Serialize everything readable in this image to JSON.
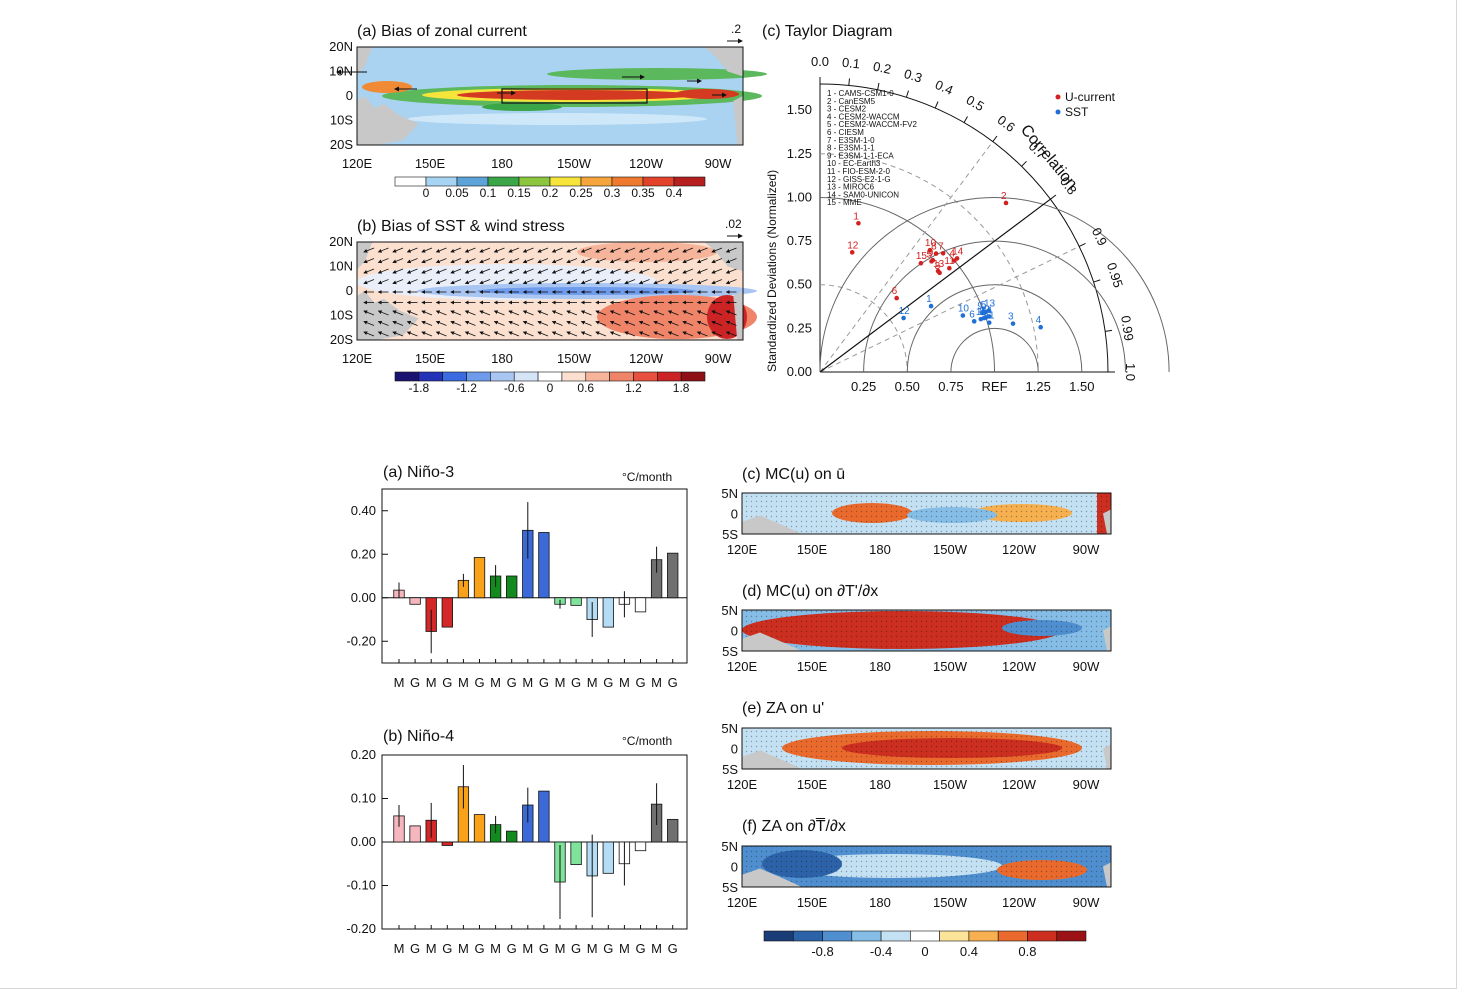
{
  "colors": {
    "ocean": "#a9d3f0",
    "land": "#c8c8c8",
    "green": "#5cb85c",
    "darkgreen": "#2c8b2c",
    "red": "#d43a22",
    "orange": "#f08a35",
    "u_current": "#d32020",
    "sst": "#1f6fd6"
  },
  "map_axes": {
    "lon_labels": [
      "120E",
      "150E",
      "180",
      "150W",
      "120W",
      "90W"
    ],
    "lat_labels_top": [
      "20N",
      "10N",
      "0",
      "10S",
      "20S"
    ],
    "lat_labels_small": [
      "5N",
      "0",
      "5S"
    ]
  },
  "panel_a_top": {
    "title": "(a) Bias of zonal current",
    "ref_vector": ".2",
    "colorbar_labels": [
      "0",
      "0.05",
      "0.1",
      "0.15",
      "0.2",
      "0.25",
      "0.3",
      "0.35",
      "0.4"
    ],
    "colorbar_colors": [
      "#ffffff",
      "#a8d4f3",
      "#5ba3d9",
      "#3aa648",
      "#8cc63e",
      "#f6e43a",
      "#f5a53b",
      "#ef7a2f",
      "#e3422a",
      "#b51f1f"
    ]
  },
  "panel_b_top": {
    "title": "(b) Bias of SST & wind stress",
    "ref_vector": ".02",
    "colorbar_labels": [
      "-1.8",
      "-1.2",
      "-0.6",
      "0",
      "0.6",
      "1.2",
      "1.8"
    ],
    "colorbar_colors": [
      "#1a1470",
      "#2432b8",
      "#3a6be0",
      "#6f9bec",
      "#a9c6f2",
      "#d6e4f7",
      "#ffffff",
      "#fbe0d0",
      "#f6b49a",
      "#f08468",
      "#e7503f",
      "#cc2424",
      "#8f0f16"
    ]
  },
  "taylor": {
    "title": "(c) Taylor Diagram",
    "ylabel": "Standardized Deviations (Normalized)",
    "corr_label": "Correlation",
    "corr_ticks": [
      "0.0",
      "0.1",
      "0.2",
      "0.3",
      "0.4",
      "0.5",
      "0.6",
      "0.7",
      "0.8",
      "0.9",
      "0.95",
      "0.99",
      "1.0"
    ],
    "x_ticks": [
      "0.25",
      "0.50",
      "0.75",
      "REF",
      "1.25",
      "1.50"
    ],
    "y_ticks": [
      "0.00",
      "0.25",
      "0.50",
      "0.75",
      "1.00",
      "1.25",
      "1.50"
    ],
    "legend": [
      "U-current",
      "SST"
    ],
    "models": [
      "1 - CAMS-CSM1-0",
      "2 - CanESM5",
      "3 - CESM2",
      "4 - CESM2-WACCM",
      "5 - CESM2-WACCM-FV2",
      "6 - CIESM",
      "7 - E3SM-1-0",
      "8 - E3SM-1-1",
      "9 - E3SM-1-1-ECA",
      "10 - EC-Earth3",
      "11 - FIO-ESM-2-0",
      "12 - GISS-E2-1-G",
      "13 - MIROC6",
      "14 - SAM0-UNICON",
      "15 - MME"
    ]
  },
  "chart_data": [
    {
      "type": "bar",
      "title": "(a) Niño-3",
      "units": "°C/month",
      "categories": [
        "M",
        "G",
        "M",
        "G",
        "M",
        "G",
        "M",
        "G",
        "M",
        "G",
        "M",
        "G",
        "M",
        "G",
        "M",
        "G",
        "M",
        "G"
      ],
      "values": [
        0.035,
        -0.03,
        -0.155,
        -0.135,
        0.08,
        0.185,
        0.1,
        0.1,
        0.31,
        0.3,
        -0.03,
        -0.035,
        -0.1,
        -0.135,
        -0.03,
        -0.065,
        0.175,
        0.205
      ],
      "errors": [
        0.035,
        0,
        0.1,
        0,
        0.03,
        0,
        0.05,
        0,
        0.13,
        0,
        0.02,
        0,
        0.08,
        0,
        0.06,
        0,
        0.06,
        0
      ],
      "bar_colors": [
        "#f5b7bd",
        "#f5b7bd",
        "#d42828",
        "#d42828",
        "#f8a21a",
        "#f8a21a",
        "#128a1e",
        "#128a1e",
        "#3b6ad8",
        "#3b6ad8",
        "#7ee49a",
        "#7ee49a",
        "#b4dcf5",
        "#b4dcf5",
        "#ffffff",
        "#ffffff",
        "#707070",
        "#707070"
      ],
      "ylim": [
        -0.3,
        0.5
      ],
      "yticks": [
        "0.40",
        "0.20",
        "0.00",
        "-0.20"
      ]
    },
    {
      "type": "bar",
      "title": "(b) Niño-4",
      "units": "°C/month",
      "categories": [
        "M",
        "G",
        "M",
        "G",
        "M",
        "G",
        "M",
        "G",
        "M",
        "G",
        "M",
        "G",
        "M",
        "G",
        "M",
        "G",
        "M",
        "G"
      ],
      "values": [
        0.06,
        0.037,
        0.05,
        -0.008,
        0.127,
        0.063,
        0.04,
        0.025,
        0.085,
        0.117,
        -0.092,
        -0.052,
        -0.078,
        -0.072,
        -0.05,
        -0.02,
        0.087,
        0.052
      ],
      "errors": [
        0.025,
        0,
        0.04,
        0,
        0.05,
        0,
        0.02,
        0,
        0.04,
        0,
        0.085,
        0,
        0.095,
        0,
        0.05,
        0,
        0.048,
        0
      ],
      "bar_colors": [
        "#f5b7bd",
        "#f5b7bd",
        "#d42828",
        "#d42828",
        "#f8a21a",
        "#f8a21a",
        "#128a1e",
        "#128a1e",
        "#3b6ad8",
        "#3b6ad8",
        "#7ee49a",
        "#7ee49a",
        "#b4dcf5",
        "#b4dcf5",
        "#ffffff",
        "#ffffff",
        "#707070",
        "#707070"
      ],
      "ylim": [
        -0.2,
        0.2
      ],
      "yticks": [
        "0.20",
        "0.10",
        "0.00",
        "-0.10",
        "-0.20"
      ]
    },
    {
      "type": "scatter",
      "title": "(c) Taylor Diagram",
      "series": [
        {
          "name": "U-current",
          "labels": [
            "1",
            "2",
            "3",
            "4",
            "5",
            "6",
            "7",
            "8",
            "9",
            "10",
            "11",
            "12",
            "13",
            "14",
            "15"
          ],
          "corr": [
            0.25,
            0.74,
            0.77,
            0.77,
            0.71,
            0.72,
            0.72,
            0.7,
            0.71,
            0.67,
            0.78,
            0.26,
            0.76,
            0.77,
            0.68
          ],
          "std": [
            0.88,
            1.44,
            0.89,
            1.0,
            0.9,
            0.61,
            0.98,
            0.95,
            0.91,
            0.94,
            0.95,
            0.71,
            0.89,
            1.02,
            0.85
          ]
        },
        {
          "name": "SST",
          "labels": [
            "1",
            "2",
            "3",
            "4",
            "5",
            "6",
            "7",
            "8",
            "9",
            "10",
            "11",
            "12",
            "13",
            "14",
            "15"
          ],
          "corr": [
            0.86,
            0.95,
            0.97,
            0.98,
            0.94,
            0.95,
            0.95,
            0.95,
            0.94,
            0.93,
            0.96,
            0.84,
            0.94,
            0.95,
            0.95
          ],
          "std": [
            0.74,
            1.02,
            1.14,
            1.29,
            1.01,
            0.93,
            1.0,
            0.99,
            0.99,
            0.88,
            1.01,
            0.57,
            1.03,
            1.0,
            0.97
          ]
        }
      ]
    }
  ],
  "right_panels": {
    "c": {
      "title": "(c) MC(u) on ū"
    },
    "d": {
      "title": "(d) MC(u) on ∂T'/∂x"
    },
    "e": {
      "title": "(e) ZA on u'"
    },
    "f": {
      "title": "(f) ZA on ∂T̅/∂x"
    },
    "colorbar_labels": [
      "-0.8",
      "-0.4",
      "0",
      "0.4",
      "0.8"
    ],
    "colorbar_colors": [
      "#1a3d78",
      "#2c62a8",
      "#4f8fcf",
      "#86bde6",
      "#c3e1f3",
      "#ffffff",
      "#fbe39a",
      "#f6b04f",
      "#e96a2c",
      "#cc2e1f",
      "#9a1215"
    ]
  }
}
